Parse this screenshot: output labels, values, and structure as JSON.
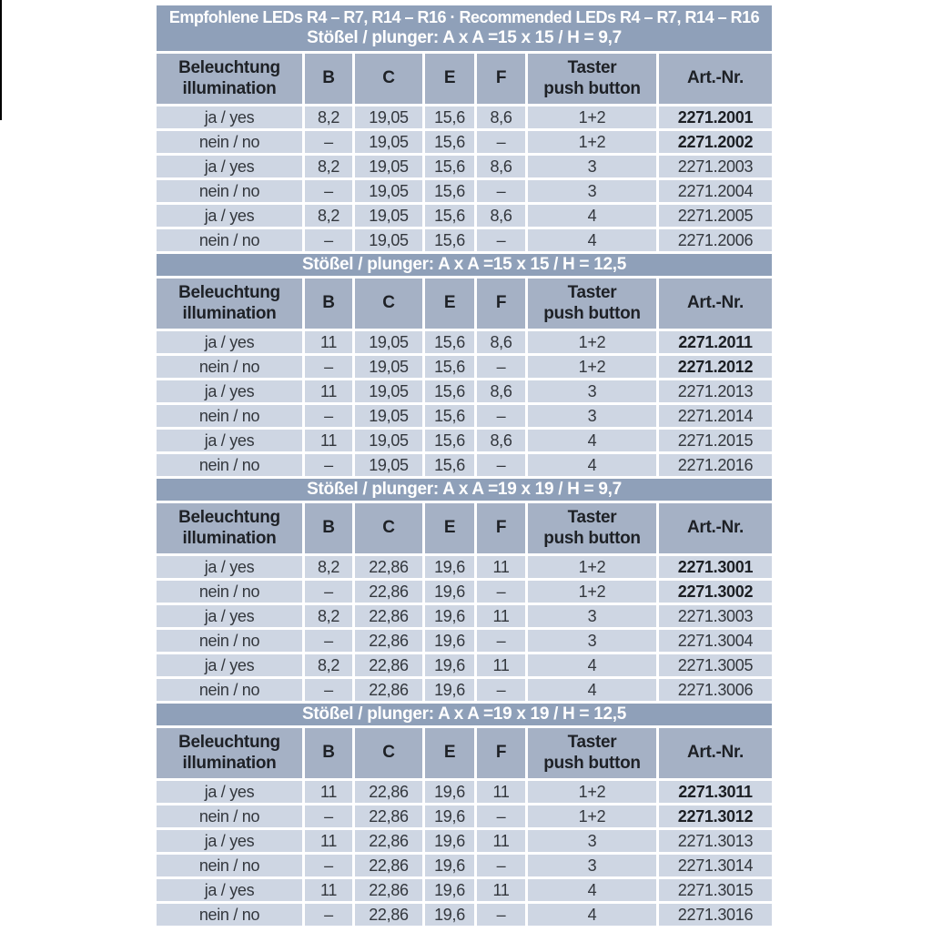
{
  "page": {
    "background": "#ffffff"
  },
  "colors": {
    "banner_bg": "#8fa0b9",
    "banner_text": "#ffffff",
    "header_bg": "#a5b1c5",
    "header_text": "#1e2126",
    "row_bg": "#ced6e3",
    "row_text": "#33373d",
    "gap": "#ffffff"
  },
  "table": {
    "title": "Empfohlene LEDs R4 – R7, R14 – R16 · Recommended LEDs R4 – R7, R14 – R16",
    "columns": [
      "Beleuchtung\nillumination",
      "B",
      "C",
      "E",
      "F",
      "Taster\npush button",
      "Art.-Nr."
    ]
  },
  "sections": [
    {
      "banner": "Stößel / plunger: A x A =15 x 15 / H = 9,7",
      "rows": [
        {
          "cells": [
            "ja / yes",
            "8,2",
            "19,05",
            "15,6",
            "8,6",
            "1+2",
            "2271.2001"
          ],
          "art_bold": true
        },
        {
          "cells": [
            "nein / no",
            "–",
            "19,05",
            "15,6",
            "–",
            "1+2",
            "2271.2002"
          ],
          "art_bold": true
        },
        {
          "cells": [
            "ja / yes",
            "8,2",
            "19,05",
            "15,6",
            "8,6",
            "3",
            "2271.2003"
          ],
          "art_bold": false
        },
        {
          "cells": [
            "nein / no",
            "–",
            "19,05",
            "15,6",
            "–",
            "3",
            "2271.2004"
          ],
          "art_bold": false
        },
        {
          "cells": [
            "ja / yes",
            "8,2",
            "19,05",
            "15,6",
            "8,6",
            "4",
            "2271.2005"
          ],
          "art_bold": false
        },
        {
          "cells": [
            "nein / no",
            "–",
            "19,05",
            "15,6",
            "–",
            "4",
            "2271.2006"
          ],
          "art_bold": false
        }
      ]
    },
    {
      "banner": "Stößel / plunger: A x A =15 x 15 / H = 12,5",
      "rows": [
        {
          "cells": [
            "ja / yes",
            "11",
            "19,05",
            "15,6",
            "8,6",
            "1+2",
            "2271.2011"
          ],
          "art_bold": true
        },
        {
          "cells": [
            "nein / no",
            "–",
            "19,05",
            "15,6",
            "–",
            "1+2",
            "2271.2012"
          ],
          "art_bold": true
        },
        {
          "cells": [
            "ja / yes",
            "11",
            "19,05",
            "15,6",
            "8,6",
            "3",
            "2271.2013"
          ],
          "art_bold": false
        },
        {
          "cells": [
            "nein / no",
            "–",
            "19,05",
            "15,6",
            "–",
            "3",
            "2271.2014"
          ],
          "art_bold": false
        },
        {
          "cells": [
            "ja / yes",
            "11",
            "19,05",
            "15,6",
            "8,6",
            "4",
            "2271.2015"
          ],
          "art_bold": false
        },
        {
          "cells": [
            "nein / no",
            "–",
            "19,05",
            "15,6",
            "–",
            "4",
            "2271.2016"
          ],
          "art_bold": false
        }
      ]
    },
    {
      "banner": "Stößel / plunger: A x A =19 x 19 / H = 9,7",
      "rows": [
        {
          "cells": [
            "ja / yes",
            "8,2",
            "22,86",
            "19,6",
            "11",
            "1+2",
            "2271.3001"
          ],
          "art_bold": true
        },
        {
          "cells": [
            "nein / no",
            "–",
            "22,86",
            "19,6",
            "–",
            "1+2",
            "2271.3002"
          ],
          "art_bold": true
        },
        {
          "cells": [
            "ja / yes",
            "8,2",
            "22,86",
            "19,6",
            "11",
            "3",
            "2271.3003"
          ],
          "art_bold": false
        },
        {
          "cells": [
            "nein / no",
            "–",
            "22,86",
            "19,6",
            "–",
            "3",
            "2271.3004"
          ],
          "art_bold": false
        },
        {
          "cells": [
            "ja / yes",
            "8,2",
            "22,86",
            "19,6",
            "11",
            "4",
            "2271.3005"
          ],
          "art_bold": false
        },
        {
          "cells": [
            "nein / no",
            "–",
            "22,86",
            "19,6",
            "–",
            "4",
            "2271.3006"
          ],
          "art_bold": false
        }
      ]
    },
    {
      "banner": "Stößel / plunger: A x A =19 x 19 / H = 12,5",
      "rows": [
        {
          "cells": [
            "ja / yes",
            "11",
            "22,86",
            "19,6",
            "11",
            "1+2",
            "2271.3011"
          ],
          "art_bold": true
        },
        {
          "cells": [
            "nein / no",
            "–",
            "22,86",
            "19,6",
            "–",
            "1+2",
            "2271.3012"
          ],
          "art_bold": true
        },
        {
          "cells": [
            "ja / yes",
            "11",
            "22,86",
            "19,6",
            "11",
            "3",
            "2271.3013"
          ],
          "art_bold": false
        },
        {
          "cells": [
            "nein / no",
            "–",
            "22,86",
            "19,6",
            "–",
            "3",
            "2271.3014"
          ],
          "art_bold": false
        },
        {
          "cells": [
            "ja / yes",
            "11",
            "22,86",
            "19,6",
            "11",
            "4",
            "2271.3015"
          ],
          "art_bold": false
        },
        {
          "cells": [
            "nein / no",
            "–",
            "22,86",
            "19,6",
            "–",
            "4",
            "2271.3016"
          ],
          "art_bold": false
        }
      ]
    }
  ]
}
